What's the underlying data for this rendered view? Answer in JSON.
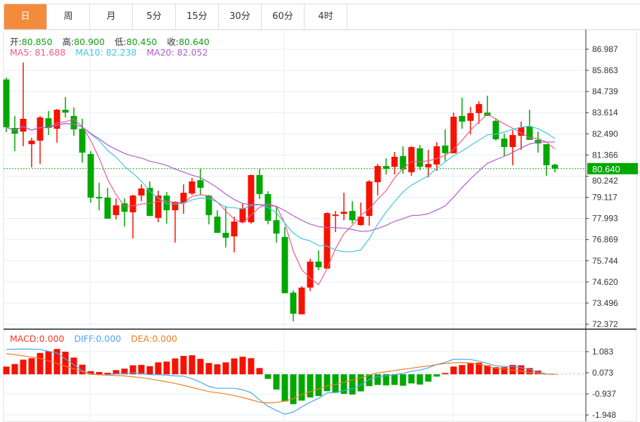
{
  "tabs": [
    "日",
    "周",
    "月",
    "5分",
    "15分",
    "30分",
    "60分",
    "4时"
  ],
  "active_tab": 0,
  "ohlc": {
    "open_label": "开:",
    "open": "80.850",
    "high_label": "高:",
    "high": "80.900",
    "low_label": "低:",
    "low": "80.450",
    "close_label": "收:",
    "close": "80.640"
  },
  "ma": {
    "ma5_label": "MA5: 81.688",
    "ma10_label": "MA10: 82.238",
    "ma20_label": "MA20: 82.052"
  },
  "macd_info": {
    "macd": "MACD:0.000",
    "diff": "DIFF:0.000",
    "dea": "DEA:0.000"
  },
  "colors": {
    "up": "#f51200",
    "down": "#00a800",
    "ma5": "#ef5a8a",
    "ma10": "#3fc7e0",
    "ma20": "#b45ccc",
    "diff": "#4aa6f0",
    "dea": "#f57c1f",
    "accent": "#f28b3c"
  },
  "current_price": "80.640",
  "chart_data": {
    "type": "candlestick",
    "price_axis_ticks": [
      "86.987",
      "85.863",
      "84.739",
      "83.614",
      "82.490",
      "81.366",
      "80.242",
      "79.117",
      "77.993",
      "76.869",
      "75.744",
      "74.620",
      "73.496",
      "72.372"
    ],
    "price_range": [
      72.372,
      86.987
    ],
    "macd_axis_ticks": [
      "1.083",
      "0.073",
      "-0.937",
      "-1.948"
    ],
    "macd_range": [
      -1.948,
      1.083
    ],
    "candles": [
      [
        85.38,
        82.84,
        85.49,
        82.58
      ],
      [
        82.8,
        82.5,
        83.44,
        81.57
      ],
      [
        82.61,
        83.29,
        86.28,
        81.83
      ],
      [
        81.94,
        82.13,
        82.28,
        80.71
      ],
      [
        82.13,
        83.36,
        83.44,
        80.89
      ],
      [
        83.32,
        82.8,
        83.7,
        82.43
      ],
      [
        82.76,
        83.77,
        83.81,
        82.02
      ],
      [
        83.77,
        83.62,
        84.45,
        83.36
      ],
      [
        83.44,
        82.73,
        83.89,
        82.39
      ],
      [
        82.76,
        81.49,
        83.29,
        80.97
      ],
      [
        81.42,
        79.1,
        81.57,
        78.84
      ],
      [
        79.14,
        79.06,
        79.89,
        78.43
      ],
      [
        79.1,
        77.98,
        79.62,
        77.98
      ],
      [
        78.17,
        78.69,
        79.06,
        77.94
      ],
      [
        78.8,
        78.35,
        79.06,
        77.57
      ],
      [
        78.32,
        79.21,
        79.25,
        76.93
      ],
      [
        79.21,
        79.59,
        79.81,
        78.91
      ],
      [
        79.62,
        78.13,
        79.96,
        78.13
      ],
      [
        78.02,
        79.21,
        79.47,
        77.79
      ],
      [
        79.21,
        78.43,
        79.4,
        77.72
      ],
      [
        78.43,
        78.88,
        78.91,
        76.71
      ],
      [
        78.84,
        79.36,
        79.81,
        78.24
      ],
      [
        79.32,
        79.96,
        80.15,
        79.25
      ],
      [
        80.03,
        79.62,
        80.63,
        79.25
      ],
      [
        79.21,
        78.17,
        79.25,
        77.68
      ],
      [
        78.09,
        77.23,
        78.43,
        77.23
      ],
      [
        77.23,
        76.97,
        78.65,
        76.45
      ],
      [
        77.04,
        77.83,
        78.09,
        76.19
      ],
      [
        77.79,
        78.54,
        78.8,
        77.79
      ],
      [
        77.79,
        80.3,
        80.33,
        77.72
      ],
      [
        80.3,
        79.29,
        80.63,
        79.03
      ],
      [
        79.29,
        77.87,
        79.44,
        77.68
      ],
      [
        77.9,
        77.19,
        78.65,
        76.71
      ],
      [
        77.01,
        74.02,
        77.53,
        74.02
      ],
      [
        74.05,
        72.93,
        74.17,
        72.52
      ],
      [
        72.9,
        74.32,
        74.39,
        72.9
      ],
      [
        74.32,
        75.7,
        75.85,
        74.13
      ],
      [
        75.7,
        75.4,
        76.3,
        75.25
      ],
      [
        75.33,
        78.28,
        78.32,
        75.33
      ],
      [
        78.13,
        78.2,
        78.39,
        77.27
      ],
      [
        78.24,
        78.35,
        79.36,
        77.9
      ],
      [
        78.39,
        77.9,
        78.91,
        77.72
      ],
      [
        77.64,
        78.09,
        78.84,
        77.61
      ],
      [
        78.13,
        79.96,
        80.03,
        77.61
      ],
      [
        79.92,
        80.78,
        80.89,
        79.21
      ],
      [
        80.78,
        80.63,
        81.19,
        80.33
      ],
      [
        80.74,
        81.27,
        81.53,
        80.33
      ],
      [
        81.31,
        80.6,
        81.83,
        80.37
      ],
      [
        80.45,
        81.79,
        81.83,
        80.26
      ],
      [
        81.72,
        80.74,
        81.9,
        80.56
      ],
      [
        80.71,
        80.89,
        81.64,
        80.18
      ],
      [
        80.86,
        81.83,
        82.05,
        80.52
      ],
      [
        81.87,
        81.46,
        82.73,
        81.04
      ],
      [
        81.46,
        83.4,
        83.62,
        81.46
      ],
      [
        83.44,
        83.14,
        84.41,
        82.76
      ],
      [
        83.18,
        83.59,
        83.92,
        82.46
      ],
      [
        83.59,
        84.07,
        84.22,
        83.03
      ],
      [
        83.62,
        83.44,
        84.52,
        83.44
      ],
      [
        83.18,
        82.2,
        83.32,
        82.13
      ],
      [
        82.24,
        81.79,
        82.5,
        81.31
      ],
      [
        81.79,
        82.43,
        82.69,
        80.82
      ],
      [
        82.39,
        82.84,
        83.14,
        81.64
      ],
      [
        82.88,
        82.17,
        83.77,
        82.17
      ],
      [
        82.17,
        81.98,
        82.61,
        81.49
      ],
      [
        81.94,
        80.82,
        81.94,
        80.26
      ],
      [
        80.85,
        80.64,
        80.9,
        80.45
      ]
    ],
    "macd": [
      0.37,
      0.49,
      0.7,
      0.77,
      1.02,
      1.1,
      1.21,
      1.08,
      0.8,
      0.46,
      0.15,
      0.11,
      0.07,
      0.2,
      0.27,
      0.43,
      0.45,
      0.39,
      0.57,
      0.61,
      0.76,
      0.88,
      0.91,
      0.74,
      0.54,
      0.48,
      0.57,
      0.76,
      0.84,
      0.77,
      0.3,
      -0.22,
      -0.73,
      -1.3,
      -1.43,
      -1.26,
      -1.11,
      -1.04,
      -0.81,
      -0.89,
      -0.94,
      -0.97,
      -0.82,
      -0.57,
      -0.51,
      -0.53,
      -0.51,
      -0.55,
      -0.44,
      -0.49,
      -0.35,
      -0.11,
      0.06,
      0.37,
      0.44,
      0.54,
      0.56,
      0.43,
      0.34,
      0.34,
      0.45,
      0.43,
      0.3,
      0.18,
      0.02,
      0.0
    ],
    "diff": [
      1.19,
      1.2,
      1.21,
      1.2,
      1.19,
      1.1,
      1.02,
      0.74,
      0.46,
      0.18,
      0.01,
      -0.02,
      -0.02,
      0.02,
      0.04,
      0.07,
      0.04,
      -0.02,
      -0.02,
      -0.04,
      -0.08,
      -0.09,
      -0.21,
      -0.38,
      -0.58,
      -0.67,
      -0.67,
      -0.67,
      -0.74,
      -0.88,
      -1.22,
      -1.53,
      -1.73,
      -1.91,
      -1.81,
      -1.56,
      -1.34,
      -1.15,
      -0.89,
      -0.87,
      -0.78,
      -0.69,
      -0.52,
      -0.25,
      -0.12,
      -0.07,
      -0.02,
      0.04,
      0.15,
      0.2,
      0.31,
      0.46,
      0.57,
      0.72,
      0.72,
      0.71,
      0.63,
      0.52,
      0.4,
      0.38,
      0.38,
      0.31,
      0.24,
      0.12,
      0.01,
      0.0
    ],
    "dea": [
      0.99,
      0.94,
      0.88,
      0.82,
      0.76,
      0.64,
      0.52,
      0.39,
      0.26,
      0.13,
      0.0,
      -0.02,
      -0.04,
      -0.06,
      -0.08,
      -0.12,
      -0.16,
      -0.22,
      -0.29,
      -0.36,
      -0.44,
      -0.53,
      -0.63,
      -0.73,
      -0.83,
      -0.88,
      -0.94,
      -1.02,
      -1.11,
      -1.22,
      -1.34,
      -1.37,
      -1.35,
      -1.28,
      -1.17,
      -0.98,
      -0.83,
      -0.7,
      -0.55,
      -0.49,
      -0.38,
      -0.27,
      -0.16,
      -0.04,
      0.07,
      0.12,
      0.18,
      0.24,
      0.29,
      0.35,
      0.4,
      0.46,
      0.52,
      0.55,
      0.56,
      0.54,
      0.49,
      0.4,
      0.29,
      0.26,
      0.2,
      0.16,
      0.09,
      0.04,
      0.01,
      0.0
    ]
  }
}
